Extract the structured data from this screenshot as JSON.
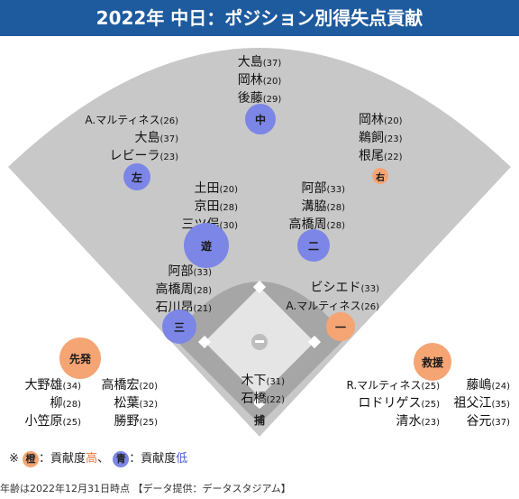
{
  "title": "2022年 中日：ポジション別得失点貢献",
  "positions": {
    "cf": "中",
    "lf": "左",
    "rf": "右",
    "ss": "遊",
    "second": "二",
    "third": "三",
    "first": "一",
    "catcher": "捕",
    "starter": "先発",
    "reliever": "救援"
  },
  "players": {
    "cf": [
      {
        "name": "大島",
        "age": "(37)"
      },
      {
        "name": "岡林",
        "age": "(20)"
      },
      {
        "name": "後藤",
        "age": "(29)"
      }
    ],
    "lf": [
      {
        "name": "A.マルティネス",
        "age": "(26)"
      },
      {
        "name": "大島",
        "age": "(37)"
      },
      {
        "name": "レビーラ",
        "age": "(23)"
      }
    ],
    "rf": [
      {
        "name": "岡林",
        "age": "(20)"
      },
      {
        "name": "鵜飼",
        "age": "(23)"
      },
      {
        "name": "根尾",
        "age": "(22)"
      }
    ],
    "ss": [
      {
        "name": "土田",
        "age": "(20)"
      },
      {
        "name": "京田",
        "age": "(28)"
      },
      {
        "name": "三ツ俣",
        "age": "(30)"
      }
    ],
    "second": [
      {
        "name": "阿部",
        "age": "(33)"
      },
      {
        "name": "溝脇",
        "age": "(28)"
      },
      {
        "name": "高橋周",
        "age": "(28)"
      }
    ],
    "third": [
      {
        "name": "阿部",
        "age": "(33)"
      },
      {
        "name": "高橋周",
        "age": "(28)"
      },
      {
        "name": "石川昂",
        "age": "(21)"
      }
    ],
    "first": [
      {
        "name": "ビシエド",
        "age": "(33)"
      },
      {
        "name": "A.マルティネス",
        "age": "(26)"
      }
    ],
    "catcher": [
      {
        "name": "木下",
        "age": "(31)"
      },
      {
        "name": "石橋",
        "age": "(22)"
      }
    ],
    "starter_left": [
      {
        "name": "大野雄",
        "age": "(34)"
      },
      {
        "name": "柳",
        "age": "(28)"
      },
      {
        "name": "小笠原",
        "age": "(25)"
      }
    ],
    "starter_right": [
      {
        "name": "高橋宏",
        "age": "(20)"
      },
      {
        "name": "松葉",
        "age": "(32)"
      },
      {
        "name": "勝野",
        "age": "(25)"
      }
    ],
    "reliever_left": [
      {
        "name": "R.マルティネス",
        "age": "(25)"
      },
      {
        "name": "ロドリゲス",
        "age": "(25)"
      },
      {
        "name": "清水",
        "age": "(23)"
      }
    ],
    "reliever_right": [
      {
        "name": "藤嶋",
        "age": "(24)"
      },
      {
        "name": "祖父江",
        "age": "(35)"
      },
      {
        "name": "谷元",
        "age": "(37)"
      }
    ]
  },
  "legend": {
    "prefix": "※",
    "orange_chip": "橙",
    "orange_text": "：貢献度",
    "orange_level": "高",
    "separator": "、",
    "blue_chip": "青",
    "blue_text": "：貢献度",
    "blue_level": "低"
  },
  "footer": "年齢は2022年12月31日時点 【データ提供：データスタジアム】",
  "colors": {
    "header": "#1e5a9e",
    "high": "#f5a474",
    "low": "#7c86e6",
    "grass": "#c8c8c8",
    "infield": "#a0a0a0"
  }
}
